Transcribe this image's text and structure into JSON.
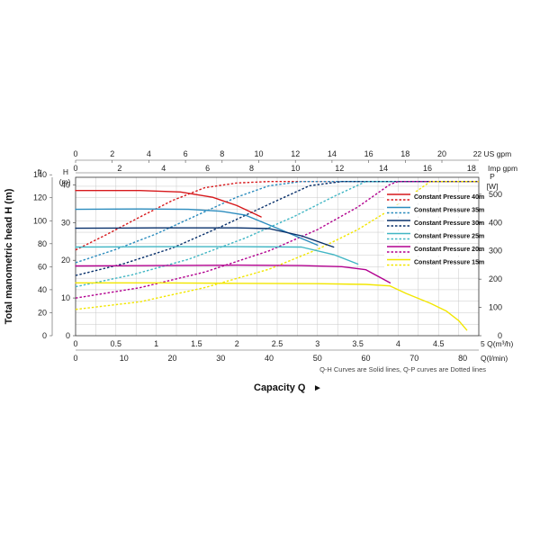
{
  "chart_data": {
    "type": "line",
    "title": "",
    "xlabel": "Capacity Q",
    "xlabel_arrow": "►",
    "ylabel": "Total manometric head H (m)",
    "note": "Q-H Curves are Solid lines, Q-P curves are Dotted lines",
    "grid": true,
    "x_axis_bottom": {
      "unit": "Q(m³/h)",
      "range": [
        0,
        5
      ],
      "ticks": [
        "0",
        "0.5",
        "1",
        "1.5",
        "2",
        "2.5",
        "3",
        "3.5",
        "4",
        "4.5",
        "5"
      ]
    },
    "x_axis_bottom2": {
      "unit": "Q(l/min)",
      "ticks": [
        "0",
        "10",
        "20",
        "30",
        "40",
        "50",
        "60",
        "70",
        "80"
      ]
    },
    "x_axis_top": {
      "unit": "US gpm",
      "ticks": [
        "0",
        "2",
        "4",
        "6",
        "8",
        "10",
        "12",
        "14",
        "16",
        "18",
        "20",
        "22"
      ]
    },
    "x_axis_top2": {
      "unit": "Imp gpm",
      "ticks": [
        "0",
        "2",
        "4",
        "6",
        "8",
        "10",
        "12",
        "14",
        "16",
        "18"
      ]
    },
    "y_axis_left": {
      "unit": "H (m)",
      "range": [
        0,
        42
      ],
      "ticks": [
        "0",
        "10",
        "20",
        "30",
        "40"
      ]
    },
    "y_axis_left2": {
      "unit": "ft",
      "ticks": [
        "0",
        "20",
        "40",
        "60",
        "80",
        "100",
        "120",
        "140"
      ]
    },
    "y_axis_right": {
      "unit_symbol": "P",
      "unit": "[W]",
      "range": [
        0,
        560
      ],
      "ticks": [
        "0",
        "100",
        "200",
        "300",
        "400",
        "500"
      ]
    },
    "series": [
      {
        "name": "Constant Pressure 40m",
        "color": "#d7191c",
        "qh": [
          [
            0,
            38.5
          ],
          [
            0.8,
            38.5
          ],
          [
            1.3,
            38.1
          ],
          [
            1.7,
            36.7
          ],
          [
            2.0,
            34.5
          ],
          [
            2.3,
            31.5
          ]
        ],
        "qp": [
          [
            0,
            303
          ],
          [
            0.4,
            360
          ],
          [
            0.8,
            420
          ],
          [
            1.2,
            478
          ],
          [
            1.6,
            523
          ],
          [
            2.0,
            540
          ],
          [
            2.4,
            545
          ],
          [
            5.0,
            545
          ]
        ]
      },
      {
        "name": "Constant Pressure 35m",
        "color": "#2b8cbe",
        "qh": [
          [
            0,
            33.5
          ],
          [
            0.8,
            33.6
          ],
          [
            1.4,
            33.5
          ],
          [
            1.8,
            33.0
          ],
          [
            2.1,
            32.0
          ],
          [
            2.5,
            28.5
          ],
          [
            3.0,
            24.0
          ]
        ],
        "qp": [
          [
            0,
            258
          ],
          [
            0.5,
            305
          ],
          [
            1.0,
            360
          ],
          [
            1.5,
            425
          ],
          [
            2.0,
            490
          ],
          [
            2.4,
            530
          ],
          [
            2.8,
            545
          ],
          [
            5.0,
            545
          ]
        ]
      },
      {
        "name": "Constant Pressure 30m",
        "color": "#08306b",
        "qh": [
          [
            0,
            28.5
          ],
          [
            1.0,
            28.6
          ],
          [
            2.0,
            28.6
          ],
          [
            2.4,
            28.4
          ],
          [
            2.8,
            26.5
          ],
          [
            3.2,
            23.5
          ]
        ],
        "qp": [
          [
            0,
            213
          ],
          [
            0.6,
            255
          ],
          [
            1.2,
            310
          ],
          [
            1.8,
            385
          ],
          [
            2.4,
            465
          ],
          [
            2.9,
            530
          ],
          [
            3.3,
            545
          ],
          [
            5.0,
            545
          ]
        ]
      },
      {
        "name": "Constant Pressure 25m",
        "color": "#41b6c4",
        "qh": [
          [
            0,
            23.5
          ],
          [
            1.0,
            23.6
          ],
          [
            2.0,
            23.6
          ],
          [
            2.8,
            23.5
          ],
          [
            3.2,
            21.5
          ],
          [
            3.5,
            19.0
          ]
        ],
        "qp": [
          [
            0,
            173
          ],
          [
            0.7,
            215
          ],
          [
            1.4,
            270
          ],
          [
            2.1,
            345
          ],
          [
            2.7,
            420
          ],
          [
            3.2,
            492
          ],
          [
            3.6,
            545
          ],
          [
            5.0,
            545
          ]
        ]
      },
      {
        "name": "Constant Pressure 20m",
        "color": "#b2008f",
        "qh": [
          [
            0,
            18.5
          ],
          [
            1.0,
            18.6
          ],
          [
            2.0,
            18.7
          ],
          [
            2.8,
            18.6
          ],
          [
            3.3,
            18.3
          ],
          [
            3.6,
            17.5
          ],
          [
            3.9,
            14.0
          ]
        ],
        "qp": [
          [
            0,
            133
          ],
          [
            0.8,
            170
          ],
          [
            1.6,
            225
          ],
          [
            2.4,
            300
          ],
          [
            3.0,
            375
          ],
          [
            3.5,
            455
          ],
          [
            3.9,
            535
          ],
          [
            4.0,
            545
          ],
          [
            5.0,
            545
          ]
        ]
      },
      {
        "name": "Constant Pressure 15m",
        "color": "#f2e600",
        "qh": [
          [
            0,
            14.0
          ],
          [
            1.0,
            14.0
          ],
          [
            2.0,
            13.9
          ],
          [
            3.0,
            13.8
          ],
          [
            3.6,
            13.6
          ],
          [
            3.9,
            13.2
          ],
          [
            4.1,
            11.2
          ],
          [
            4.4,
            8.6
          ],
          [
            4.6,
            6.5
          ],
          [
            4.75,
            4.0
          ],
          [
            4.85,
            1.5
          ]
        ],
        "qp": [
          [
            0,
            93
          ],
          [
            0.8,
            120
          ],
          [
            1.6,
            170
          ],
          [
            2.4,
            235
          ],
          [
            3.0,
            305
          ],
          [
            3.5,
            375
          ],
          [
            3.9,
            445
          ],
          [
            4.2,
            505
          ],
          [
            4.4,
            545
          ],
          [
            5.0,
            545
          ]
        ]
      }
    ]
  }
}
